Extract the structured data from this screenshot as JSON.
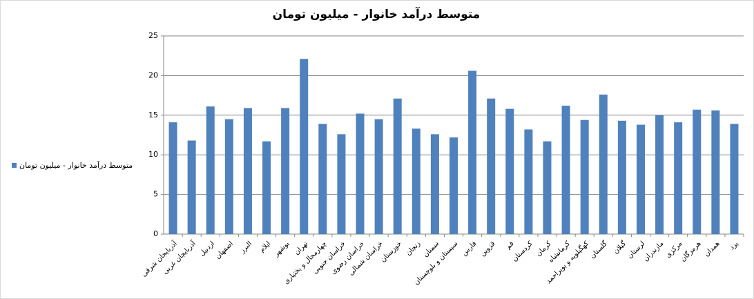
{
  "chart_data": {
    "type": "bar",
    "title": "متوسط درآمد خانوار - میلیون تومان",
    "categories": [
      "آذربایجان شرقی",
      "آذربایجان غربی",
      "اردبیل",
      "اصفهان",
      "البرز",
      "ایلام",
      "بوشهر",
      "تهران",
      "چهارمحال و بختیاری",
      "خراسان جنوبی",
      "خراسان رضوی",
      "خراسان شمالی",
      "خوزستان",
      "زنجان",
      "سمنان",
      "سیستان و بلوچستان",
      "فارس",
      "قزوین",
      "قم",
      "کردستان",
      "کرمان",
      "کرمانشاه",
      "کهگیلویه و بویراحمد",
      "گلستان",
      "گیلان",
      "لرستان",
      "مازندران",
      "مرکزی",
      "هرمزگان",
      "همدان",
      "یزد"
    ],
    "series": [
      {
        "name": "متوسط درآمد خانوار - میلیون تومان",
        "color": "#4f81bd",
        "values": [
          14.1,
          11.8,
          16.1,
          14.5,
          15.9,
          11.7,
          15.9,
          22.1,
          13.9,
          12.6,
          15.2,
          14.5,
          17.1,
          13.3,
          12.6,
          12.2,
          20.6,
          17.1,
          15.8,
          13.2,
          11.7,
          16.2,
          14.4,
          17.6,
          14.3,
          13.8,
          15.0,
          14.1,
          15.7,
          15.6,
          13.9
        ]
      }
    ],
    "ylim": [
      0,
      25
    ],
    "yticks": [
      0,
      5,
      10,
      15,
      20,
      25
    ],
    "grid": true,
    "legend": "left"
  }
}
